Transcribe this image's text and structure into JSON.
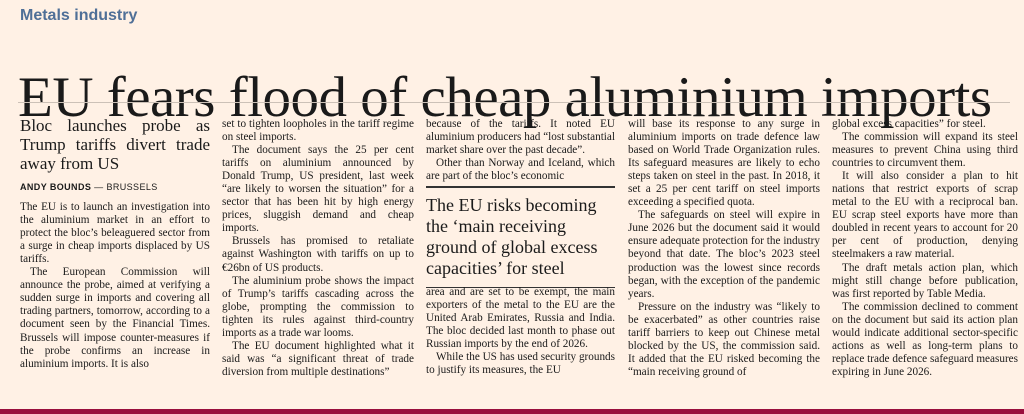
{
  "section": "Metals industry",
  "headline": "EU fears flood of cheap aluminium imports",
  "standfirst": "Bloc launches probe as Trump tariffs divert trade away from US",
  "byline": {
    "author": "ANDY BOUNDS",
    "location": "— BRUSSELS"
  },
  "pull_quote": "The EU risks becoming the ‘main receiving ground of global excess capacities’ for steel",
  "columns": {
    "col1": [
      "The EU is to launch an investigation into the aluminium market in an effort to protect the bloc’s beleaguered sector from a surge in cheap imports displaced by US tariffs.",
      "The European Commission will announce the probe, aimed at verifying a sudden surge in imports and covering all trading partners, tomorrow, according to a document seen by the Financial Times. Brussels will impose counter-measures if the probe confirms an increase in aluminium imports. It is also"
    ],
    "col2": [
      "set to tighten loopholes in the tariff regime on steel imports.",
      "The document says the 25 per cent tariffs on aluminium announced by Donald Trump, US president, last week “are likely to worsen the situation” for a sector that has been hit by high energy prices, sluggish demand and cheap imports.",
      "Brussels has promised to retaliate against Washington with tariffs on up to €26bn of US products.",
      "The aluminium probe shows the impact of Trump’s tariffs cascading across the globe, prompting the commission to tighten its rules against third-country imports as a trade war looms.",
      "The EU document highlighted what it said was “a significant threat of trade diversion from multiple destinations”"
    ],
    "col3a": [
      "because of the tariffs. It noted EU aluminium producers had “lost substantial market share over the past decade”.",
      "Other than Norway and Iceland, which are part of the bloc’s economic"
    ],
    "col3b": [
      "area and are set to be exempt, the main exporters of the metal to the EU are the United Arab Emirates, Russia and India. The bloc decided last month to phase out Russian imports by the end of 2026.",
      "While the US has used security grounds to justify its measures, the EU"
    ],
    "col4": [
      "will base its response to any surge in aluminium imports on trade defence law based on World Trade Organization rules. Its safeguard measures are likely to echo steps taken on steel in the past. In 2018, it set a 25 per cent tariff on steel imports exceeding a specified quota.",
      "The safeguards on steel will expire in June 2026 but the document said it would ensure adequate protection for the industry beyond that date. The bloc’s 2023 steel production was the lowest since records began, with the exception of the pandemic years.",
      "Pressure on the industry was “likely to be exacerbated” as other countries raise tariff barriers to keep out Chinese metal blocked by the US, the commission said. It added that the EU risked becoming the “main receiving ground of"
    ],
    "col5": [
      "global excess capacities” for steel.",
      "The commission will expand its steel measures to prevent China using third countries to circumvent them.",
      "It will also consider a plan to hit nations that restrict exports of scrap metal to the EU with a reciprocal ban. EU scrap steel exports have more than doubled in recent years to account for 20 per cent of production, denying steelmakers a raw material.",
      "The draft metals action plan, which might still change before publication, was first reported by Table Media.",
      "The commission declined to comment on the document but said its action plan would indicate additional sector-specific actions as well as long-term plans to replace trade defence safeguard measures expiring in June 2026."
    ]
  },
  "colors": {
    "background": "#fff1e5",
    "section_label": "#4f6f97",
    "accent_bar": "#990f3d"
  }
}
